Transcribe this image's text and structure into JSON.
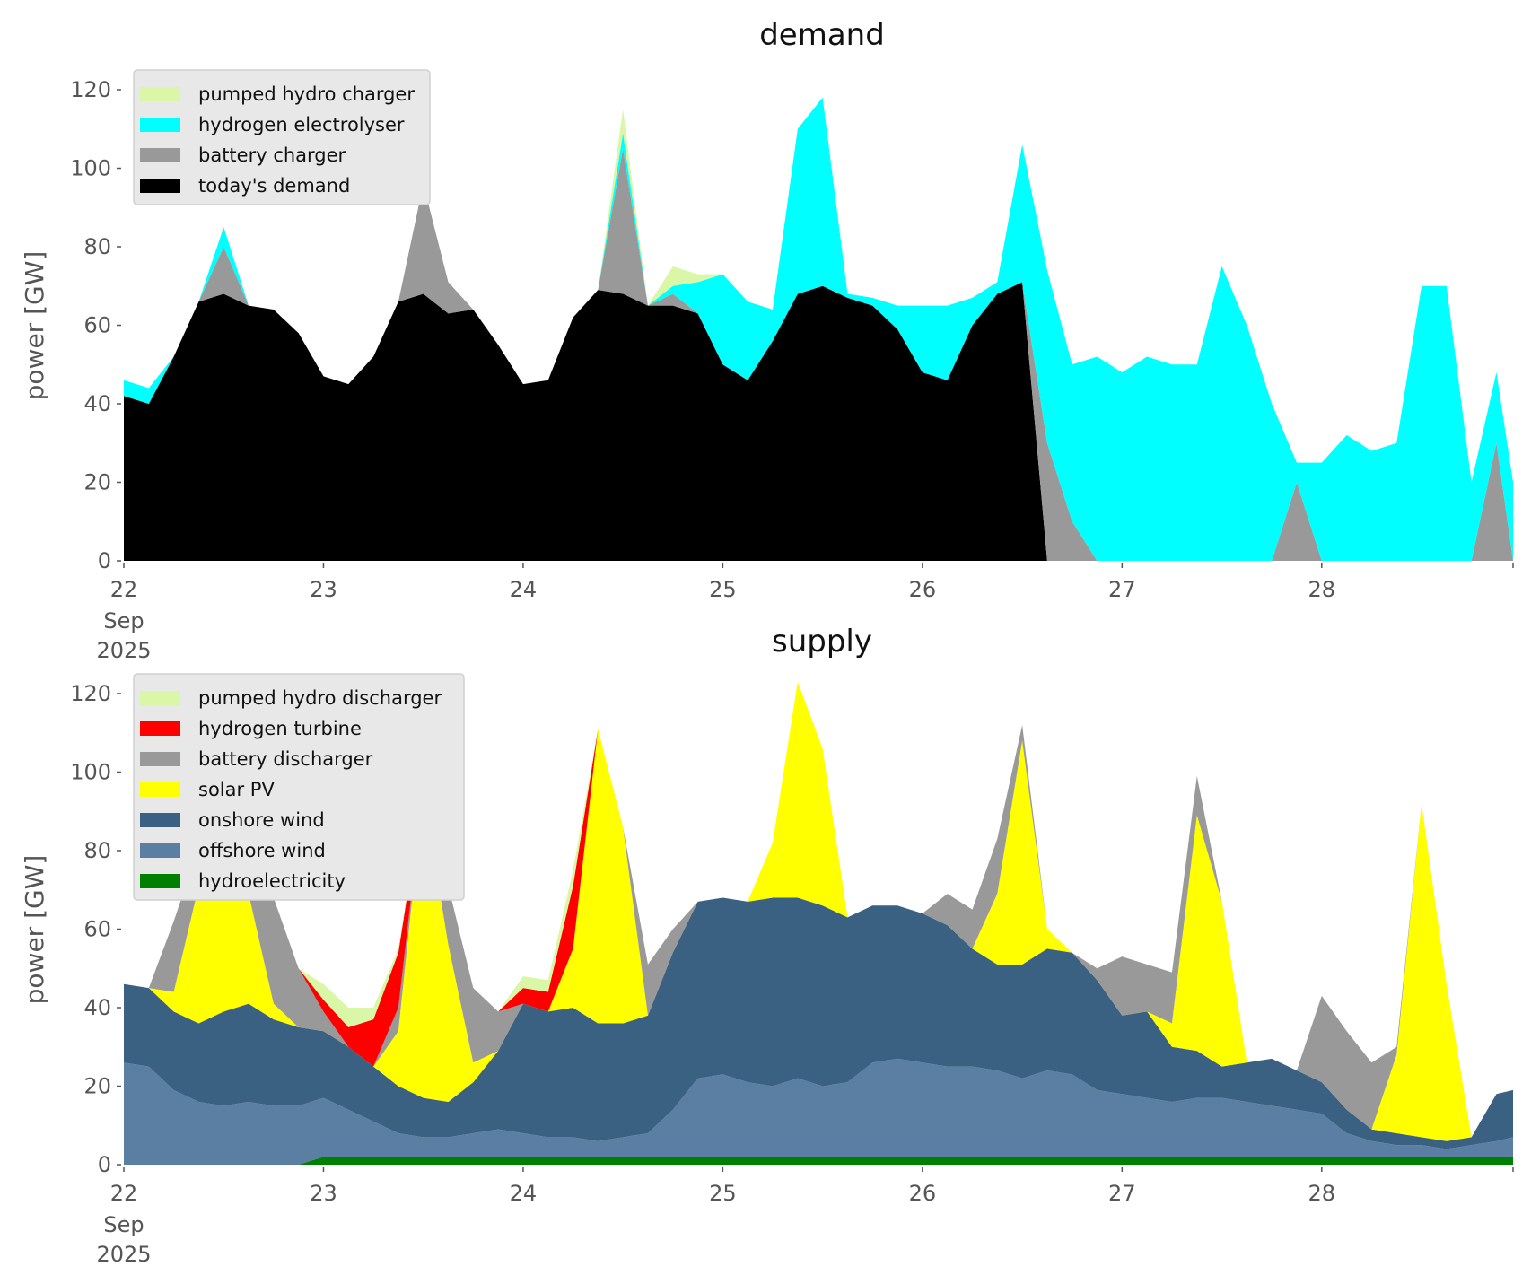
{
  "chart_data": [
    {
      "type": "area",
      "stacked": true,
      "title": "demand",
      "xlabel": "",
      "ylabel": "power [GW]",
      "ylim": [
        0,
        125
      ],
      "yticks": [
        0,
        20,
        40,
        60,
        80,
        100,
        120
      ],
      "x_unit": "hours since 22 Sep 2025 00:00",
      "x": [
        0,
        3,
        6,
        9,
        12,
        15,
        18,
        21,
        24,
        27,
        30,
        33,
        36,
        39,
        42,
        45,
        48,
        51,
        54,
        57,
        60,
        63,
        66,
        69,
        72,
        75,
        78,
        81,
        84,
        87,
        90,
        93,
        96,
        99,
        102,
        105,
        108,
        111,
        114,
        117,
        120,
        123,
        126,
        129,
        132,
        135,
        138,
        141,
        144,
        147,
        150,
        153,
        156,
        159,
        162,
        165,
        167
      ],
      "xlim": [
        0,
        167
      ],
      "xticks": [
        {
          "hour": 0,
          "label": "22",
          "sub": [
            "Sep",
            "2025"
          ]
        },
        {
          "hour": 24,
          "label": "23"
        },
        {
          "hour": 48,
          "label": "24"
        },
        {
          "hour": 72,
          "label": "25"
        },
        {
          "hour": 96,
          "label": "26"
        },
        {
          "hour": 120,
          "label": "27"
        },
        {
          "hour": 144,
          "label": "28"
        }
      ],
      "legend_position": "top-left",
      "legend_order": [
        "pumped hydro charger",
        "hydrogen electrolyser",
        "battery charger",
        "today's demand"
      ],
      "series": [
        {
          "name": "today's demand",
          "color": "#000000",
          "values": [
            42,
            40,
            52,
            66,
            68,
            65,
            64,
            58,
            47,
            45,
            52,
            66,
            68,
            63,
            64,
            55,
            45,
            46,
            62,
            69,
            68,
            65,
            65,
            63,
            50,
            46,
            56,
            68,
            70,
            67,
            65,
            59,
            48,
            46,
            60,
            68,
            71,
            0,
            0,
            0,
            0,
            0,
            0,
            0,
            0,
            0,
            0,
            0,
            0,
            0,
            0,
            0,
            0,
            0,
            0,
            0,
            0
          ]
        },
        {
          "name": "battery charger",
          "color": "#999999",
          "values": [
            0,
            0,
            0,
            0,
            12,
            0,
            0,
            0,
            0,
            0,
            0,
            0,
            28,
            8,
            0,
            0,
            0,
            0,
            0,
            0,
            37,
            0,
            3,
            0,
            0,
            0,
            0,
            0,
            0,
            0,
            0,
            0,
            0,
            0,
            0,
            0,
            0,
            30,
            10,
            0,
            0,
            0,
            0,
            0,
            0,
            0,
            0,
            20,
            0,
            0,
            0,
            0,
            0,
            0,
            0,
            30,
            0
          ]
        },
        {
          "name": "hydrogen electrolyser",
          "color": "#00ffff",
          "values": [
            4,
            4,
            0,
            0,
            5,
            0,
            0,
            0,
            0,
            0,
            0,
            0,
            0,
            0,
            0,
            0,
            0,
            0,
            0,
            0,
            4,
            0,
            2,
            8,
            23,
            20,
            8,
            42,
            48,
            1,
            2,
            6,
            17,
            19,
            7,
            3,
            35,
            44,
            40,
            52,
            48,
            52,
            50,
            50,
            75,
            60,
            40,
            5,
            25,
            32,
            28,
            30,
            70,
            70,
            20,
            18,
            20
          ]
        },
        {
          "name": "pumped hydro charger",
          "color": "#d9f7a6",
          "values": [
            0,
            0,
            0,
            0,
            0,
            0,
            0,
            0,
            0,
            0,
            0,
            0,
            0,
            0,
            0,
            0,
            0,
            0,
            0,
            0,
            6,
            0,
            5,
            2,
            0,
            0,
            0,
            0,
            0,
            0,
            0,
            0,
            0,
            0,
            0,
            0,
            0,
            0,
            0,
            0,
            0,
            0,
            0,
            0,
            0,
            0,
            0,
            0,
            0,
            0,
            0,
            0,
            0,
            0,
            0,
            0,
            0
          ]
        }
      ]
    },
    {
      "type": "area",
      "stacked": true,
      "title": "supply",
      "xlabel": "",
      "ylabel": "power [GW]",
      "ylim": [
        0,
        125
      ],
      "yticks": [
        0,
        20,
        40,
        60,
        80,
        100,
        120
      ],
      "x_unit": "hours since 22 Sep 2025 00:00",
      "x": [
        0,
        3,
        6,
        9,
        12,
        15,
        18,
        21,
        24,
        27,
        30,
        33,
        36,
        39,
        42,
        45,
        48,
        51,
        54,
        57,
        60,
        63,
        66,
        69,
        72,
        75,
        78,
        81,
        84,
        87,
        90,
        93,
        96,
        99,
        102,
        105,
        108,
        111,
        114,
        117,
        120,
        123,
        126,
        129,
        132,
        135,
        138,
        141,
        144,
        147,
        150,
        153,
        156,
        159,
        162,
        165,
        167
      ],
      "xlim": [
        0,
        167
      ],
      "xticks": [
        {
          "hour": 0,
          "label": "22",
          "sub": [
            "Sep",
            "2025"
          ]
        },
        {
          "hour": 24,
          "label": "23"
        },
        {
          "hour": 48,
          "label": "24"
        },
        {
          "hour": 72,
          "label": "25"
        },
        {
          "hour": 96,
          "label": "26"
        },
        {
          "hour": 120,
          "label": "27"
        },
        {
          "hour": 144,
          "label": "28"
        }
      ],
      "legend_position": "top-left",
      "legend_order": [
        "pumped hydro discharger",
        "hydrogen turbine",
        "battery discharger",
        "solar PV",
        "onshore wind",
        "offshore wind",
        "hydroelectricity"
      ],
      "series": [
        {
          "name": "hydroelectricity",
          "color": "#008000",
          "values": [
            0,
            0,
            0,
            0,
            0,
            0,
            0,
            0,
            2,
            2,
            2,
            2,
            2,
            2,
            2,
            2,
            2,
            2,
            2,
            2,
            2,
            2,
            2,
            2,
            2,
            2,
            2,
            2,
            2,
            2,
            2,
            2,
            2,
            2,
            2,
            2,
            2,
            2,
            2,
            2,
            2,
            2,
            2,
            2,
            2,
            2,
            2,
            2,
            2,
            2,
            2,
            2,
            2,
            2,
            2,
            2,
            2
          ]
        },
        {
          "name": "offshore wind",
          "color": "#5b7fa3",
          "values": [
            26,
            25,
            19,
            16,
            15,
            16,
            15,
            15,
            15,
            12,
            9,
            6,
            5,
            5,
            6,
            7,
            6,
            5,
            5,
            4,
            5,
            6,
            12,
            20,
            21,
            19,
            18,
            20,
            18,
            19,
            24,
            25,
            24,
            23,
            23,
            22,
            20,
            22,
            21,
            17,
            16,
            15,
            14,
            15,
            15,
            14,
            13,
            12,
            11,
            6,
            4,
            3,
            3,
            2,
            3,
            4,
            5
          ]
        },
        {
          "name": "onshore wind",
          "color": "#3b6182",
          "values": [
            20,
            20,
            20,
            20,
            24,
            25,
            22,
            20,
            17,
            16,
            14,
            12,
            10,
            9,
            13,
            20,
            33,
            32,
            33,
            30,
            29,
            30,
            40,
            45,
            45,
            46,
            48,
            46,
            46,
            42,
            40,
            39,
            38,
            36,
            30,
            27,
            29,
            31,
            31,
            28,
            20,
            22,
            14,
            12,
            8,
            10,
            12,
            10,
            8,
            6,
            3,
            3,
            2,
            2,
            2,
            12,
            12
          ]
        },
        {
          "name": "solar PV",
          "color": "#ffff00",
          "values": [
            0,
            0,
            5,
            35,
            48,
            28,
            4,
            0,
            0,
            0,
            0,
            14,
            78,
            40,
            5,
            0,
            0,
            0,
            15,
            75,
            50,
            0,
            0,
            0,
            0,
            0,
            14,
            55,
            40,
            0,
            0,
            0,
            0,
            0,
            0,
            18,
            57,
            5,
            0,
            0,
            0,
            0,
            6,
            60,
            42,
            0,
            0,
            0,
            0,
            0,
            0,
            20,
            85,
            40,
            0,
            0,
            0
          ]
        },
        {
          "name": "battery discharger",
          "color": "#999999",
          "values": [
            0,
            0,
            18,
            10,
            0,
            12,
            27,
            15,
            5,
            0,
            0,
            6,
            0,
            15,
            19,
            10,
            0,
            0,
            0,
            0,
            0,
            13,
            6,
            0,
            0,
            0,
            0,
            0,
            0,
            0,
            0,
            0,
            0,
            8,
            10,
            14,
            4,
            0,
            0,
            3,
            15,
            12,
            13,
            10,
            0,
            0,
            0,
            0,
            22,
            20,
            17,
            2,
            0,
            0,
            0,
            0,
            0
          ]
        },
        {
          "name": "hydrogen turbine",
          "color": "#ff0000",
          "values": [
            0,
            0,
            0,
            0,
            0,
            0,
            0,
            0,
            3,
            5,
            12,
            14,
            0,
            0,
            0,
            0,
            4,
            5,
            16,
            0,
            0,
            0,
            0,
            0,
            0,
            0,
            0,
            0,
            0,
            0,
            0,
            0,
            0,
            0,
            0,
            0,
            0,
            0,
            0,
            0,
            0,
            0,
            0,
            0,
            0,
            0,
            0,
            0,
            0,
            0,
            0,
            0,
            0,
            0,
            0,
            0,
            0
          ]
        },
        {
          "name": "pumped hydro discharger",
          "color": "#d9f7a6",
          "values": [
            0,
            0,
            0,
            0,
            0,
            0,
            0,
            0,
            4,
            5,
            3,
            1,
            0,
            0,
            0,
            0,
            3,
            3,
            4,
            0,
            0,
            0,
            0,
            0,
            0,
            0,
            0,
            0,
            0,
            0,
            0,
            0,
            0,
            0,
            0,
            0,
            0,
            0,
            0,
            0,
            0,
            0,
            0,
            0,
            0,
            0,
            0,
            0,
            0,
            0,
            0,
            0,
            0,
            0,
            0,
            0,
            0
          ]
        }
      ]
    }
  ]
}
